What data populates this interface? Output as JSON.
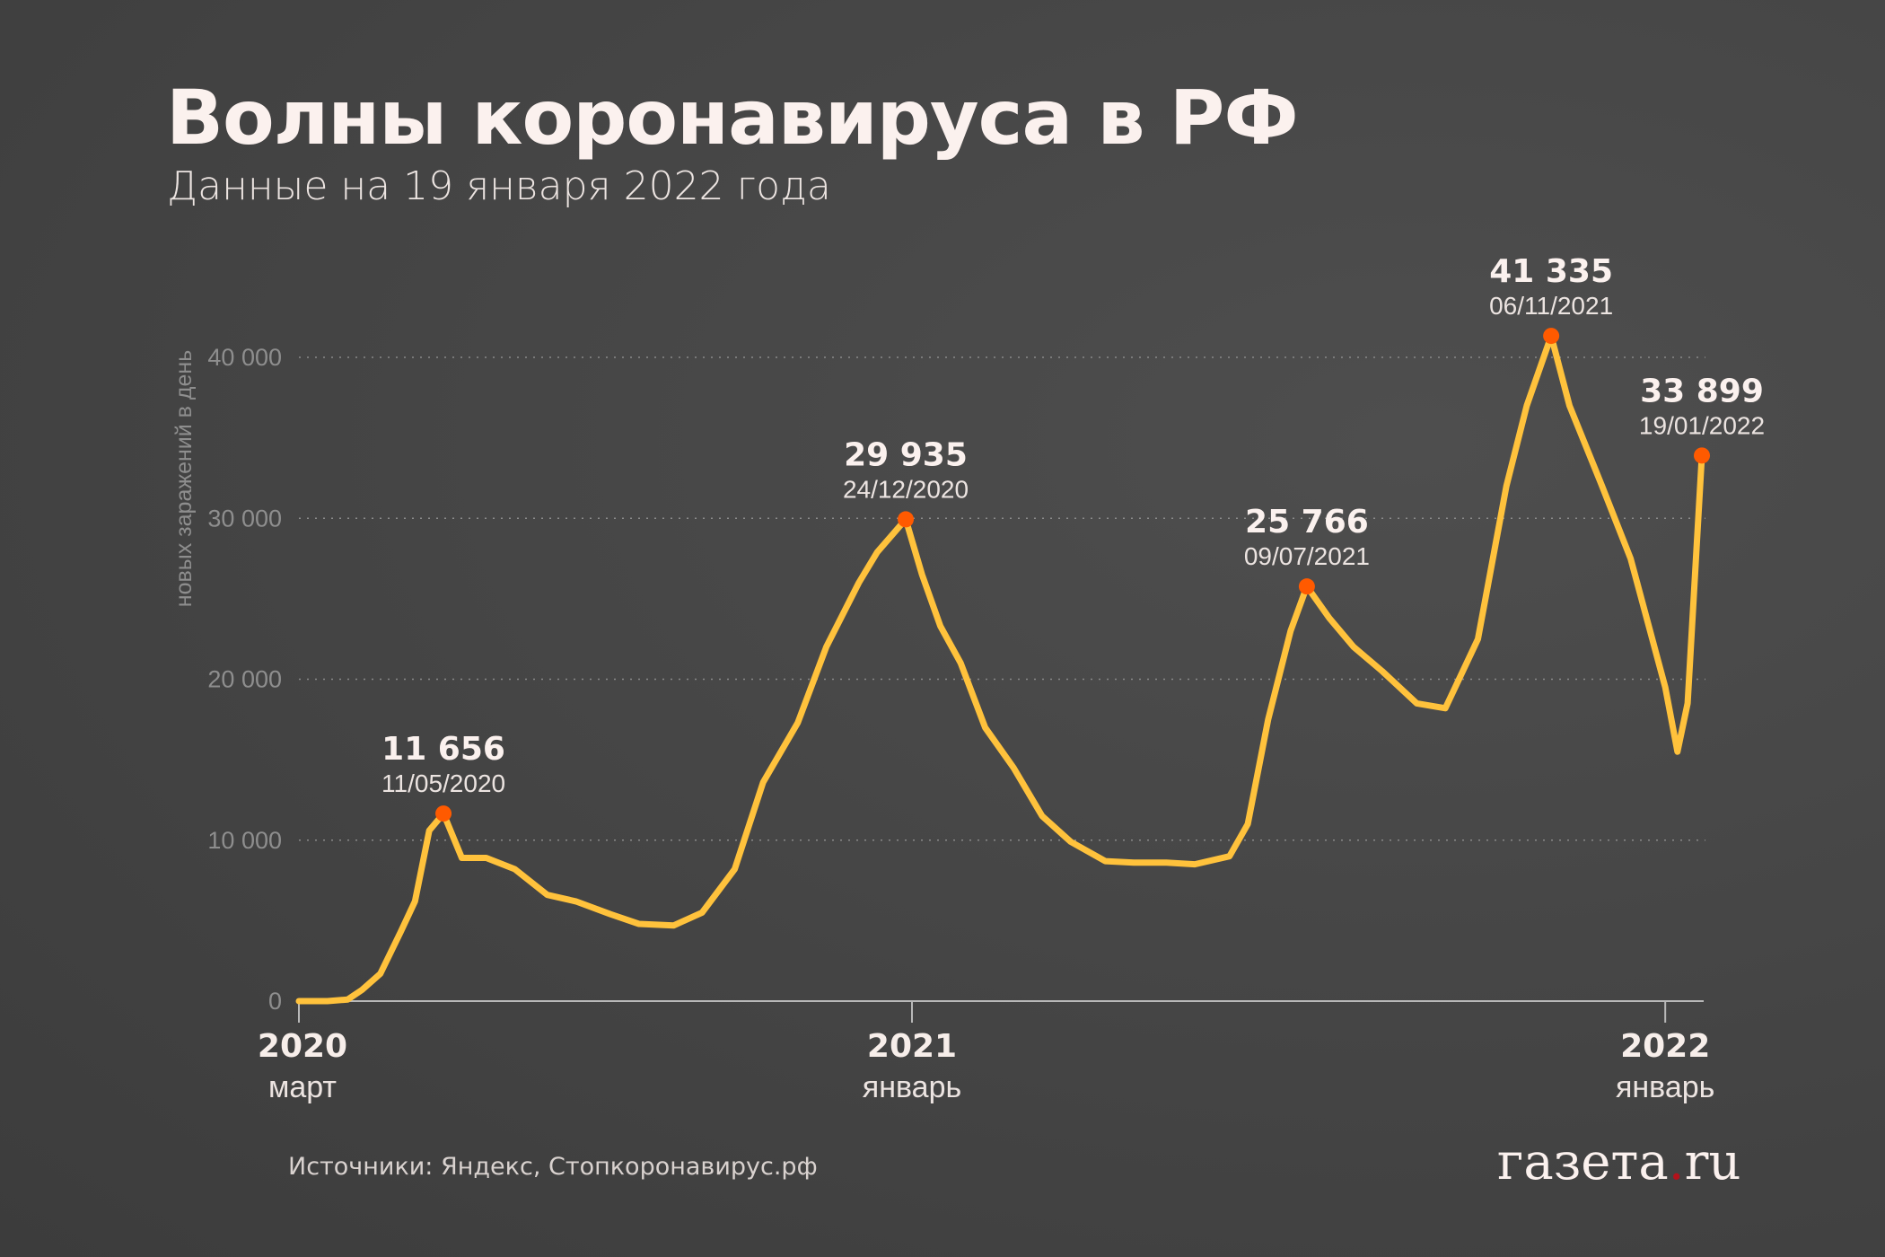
{
  "header": {
    "title": "Волны коронавируса в РФ",
    "subtitle": "Данные на 19 января 2022 года"
  },
  "footer": {
    "source": "Источники: Яндекс, Стопкоронавирус.рф",
    "logo_text": "газета.ru",
    "logo_main": "газета",
    "logo_dot": ".",
    "logo_tld": "ru"
  },
  "colors": {
    "line": "#ffc23c",
    "peak": "#ff5a00",
    "grid": "#8a8a8a",
    "axis": "#b8b8b8"
  },
  "chart_data": {
    "type": "line",
    "title": "Волны коронавируса в РФ",
    "ylabel": "новых заражений в день",
    "xlabel": "",
    "ylim": [
      0,
      40000
    ],
    "xlim": [
      "2020-03-01",
      "2022-01-19"
    ],
    "grid": true,
    "yticks": [
      {
        "value": 0,
        "label": "0"
      },
      {
        "value": 10000,
        "label": "10 000"
      },
      {
        "value": 20000,
        "label": "20 000"
      },
      {
        "value": 30000,
        "label": "30 000"
      },
      {
        "value": 40000,
        "label": "40 000"
      }
    ],
    "xticks": [
      {
        "date": "2020-03-01",
        "year": "2020",
        "month": "март",
        "tick": false
      },
      {
        "date": "2021-01-01",
        "year": "2021",
        "month": "январь",
        "tick": true
      },
      {
        "date": "2022-01-01",
        "year": "2022",
        "month": "январь",
        "tick": true
      }
    ],
    "series": [
      {
        "name": "новых заражений в день",
        "points": [
          [
            "2020-03-01",
            0
          ],
          [
            "2020-03-15",
            0
          ],
          [
            "2020-03-25",
            100
          ],
          [
            "2020-04-01",
            700
          ],
          [
            "2020-04-10",
            1700
          ],
          [
            "2020-04-20",
            4300
          ],
          [
            "2020-04-27",
            6200
          ],
          [
            "2020-05-04",
            10600
          ],
          [
            "2020-05-11",
            11656
          ],
          [
            "2020-05-20",
            8900
          ],
          [
            "2020-06-01",
            8900
          ],
          [
            "2020-06-15",
            8200
          ],
          [
            "2020-07-01",
            6600
          ],
          [
            "2020-07-15",
            6200
          ],
          [
            "2020-08-01",
            5400
          ],
          [
            "2020-08-15",
            4800
          ],
          [
            "2020-09-01",
            4700
          ],
          [
            "2020-09-15",
            5500
          ],
          [
            "2020-10-01",
            8200
          ],
          [
            "2020-10-15",
            13600
          ],
          [
            "2020-11-01",
            17300
          ],
          [
            "2020-11-15",
            22000
          ],
          [
            "2020-12-01",
            26000
          ],
          [
            "2020-12-10",
            27900
          ],
          [
            "2020-12-24",
            29935
          ],
          [
            "2021-01-01",
            26500
          ],
          [
            "2021-01-10",
            23300
          ],
          [
            "2021-01-20",
            21000
          ],
          [
            "2021-02-01",
            17000
          ],
          [
            "2021-02-15",
            14500
          ],
          [
            "2021-03-01",
            11500
          ],
          [
            "2021-03-15",
            9900
          ],
          [
            "2021-04-01",
            8700
          ],
          [
            "2021-04-15",
            8600
          ],
          [
            "2021-05-01",
            8600
          ],
          [
            "2021-05-15",
            8500
          ],
          [
            "2021-06-01",
            9000
          ],
          [
            "2021-06-10",
            11000
          ],
          [
            "2021-06-20",
            17500
          ],
          [
            "2021-07-01",
            23000
          ],
          [
            "2021-07-09",
            25766
          ],
          [
            "2021-07-20",
            23800
          ],
          [
            "2021-08-01",
            22000
          ],
          [
            "2021-08-15",
            20500
          ],
          [
            "2021-09-01",
            18500
          ],
          [
            "2021-09-15",
            18200
          ],
          [
            "2021-10-01",
            22500
          ],
          [
            "2021-10-15",
            32000
          ],
          [
            "2021-10-25",
            37000
          ],
          [
            "2021-11-06",
            41335
          ],
          [
            "2021-11-15",
            37000
          ],
          [
            "2021-12-01",
            32000
          ],
          [
            "2021-12-15",
            27500
          ],
          [
            "2022-01-01",
            19500
          ],
          [
            "2022-01-07",
            15500
          ],
          [
            "2022-01-12",
            18500
          ],
          [
            "2022-01-19",
            33899
          ]
        ]
      }
    ],
    "annotations": [
      {
        "date": "2020-05-11",
        "value": 11656,
        "value_label": "11 656",
        "date_label": "11/05/2020"
      },
      {
        "date": "2020-12-24",
        "value": 29935,
        "value_label": "29 935",
        "date_label": "24/12/2020"
      },
      {
        "date": "2021-07-09",
        "value": 25766,
        "value_label": "25 766",
        "date_label": "09/07/2021"
      },
      {
        "date": "2021-11-06",
        "value": 41335,
        "value_label": "41 335",
        "date_label": "06/11/2021"
      },
      {
        "date": "2022-01-19",
        "value": 33899,
        "value_label": "33 899",
        "date_label": "19/01/2022"
      }
    ]
  }
}
